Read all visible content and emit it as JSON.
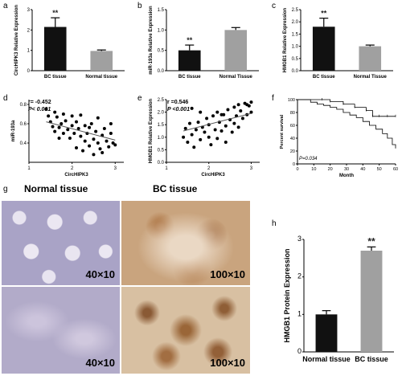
{
  "colors": {
    "black_bar": "#111111",
    "gray_bar": "#a0a0a0",
    "sig": "#222222"
  },
  "panels": {
    "a": {
      "letter": "a"
    },
    "b": {
      "letter": "b"
    },
    "c": {
      "letter": "c"
    },
    "d": {
      "letter": "d",
      "stat1": "r= -0.452",
      "stat2": "P< 0.001"
    },
    "e": {
      "letter": "e",
      "stat1": "r =0.546",
      "stat2": "P <0.001"
    },
    "f": {
      "letter": "f",
      "pval": "P=0.034"
    },
    "g": {
      "letter": "g",
      "title_left": "Normal tissue",
      "title_right": "BC tissue",
      "mag": [
        "40×10",
        "100×10",
        "40×10",
        "100×10"
      ]
    },
    "h": {
      "letter": "h"
    }
  },
  "chart_data": [
    {
      "id": "a",
      "type": "bar",
      "categories": [
        "BC tissue",
        "Normal tissue"
      ],
      "values": [
        2.15,
        0.97
      ],
      "errors": [
        0.45,
        0.05
      ],
      "ylabel": "CircHIPK3 Relative Expression",
      "ylim": [
        0,
        3
      ],
      "yticks": [
        "0",
        "1",
        "2",
        "3"
      ],
      "significance": [
        "**",
        ""
      ]
    },
    {
      "id": "b",
      "type": "bar",
      "categories": [
        "BC tissue",
        "Normal Tissue"
      ],
      "values": [
        0.5,
        1.0
      ],
      "errors": [
        0.13,
        0.06
      ],
      "ylabel": "miR-193a Relative Expression",
      "ylim": [
        0,
        1.5
      ],
      "yticks": [
        "0.0",
        "0.5",
        "1.0",
        "1.5"
      ],
      "significance": [
        "**",
        ""
      ]
    },
    {
      "id": "c",
      "type": "bar",
      "categories": [
        "BC tissue",
        "Normal Tissue"
      ],
      "values": [
        1.8,
        1.0
      ],
      "errors": [
        0.35,
        0.05
      ],
      "ylabel": "HMGB1 Relative Expression",
      "ylim": [
        0,
        2.5
      ],
      "yticks": [
        "0.0",
        "0.5",
        "1.0",
        "1.5",
        "2.0",
        "2.5"
      ],
      "significance": [
        "**",
        ""
      ]
    },
    {
      "id": "d",
      "type": "scatter",
      "xlabel": "CircHIPK3",
      "ylabel": "miR-193a",
      "xlim": [
        1,
        3.2
      ],
      "ylim": [
        0.2,
        0.85
      ],
      "xticks": [
        "1",
        "2",
        "3"
      ],
      "yticks": [
        "0.4",
        "0.6",
        "0.8"
      ],
      "trend": [
        [
          1.4,
          0.62
        ],
        [
          3.0,
          0.43
        ]
      ],
      "points": [
        [
          1.4,
          0.75
        ],
        [
          1.45,
          0.68
        ],
        [
          1.5,
          0.62
        ],
        [
          1.55,
          0.57
        ],
        [
          1.6,
          0.72
        ],
        [
          1.65,
          0.67
        ],
        [
          1.7,
          0.56
        ],
        [
          1.75,
          0.6
        ],
        [
          1.8,
          0.5
        ],
        [
          1.8,
          0.7
        ],
        [
          1.85,
          0.63
        ],
        [
          1.9,
          0.54
        ],
        [
          1.95,
          0.45
        ],
        [
          2.0,
          0.68
        ],
        [
          2.0,
          0.58
        ],
        [
          2.05,
          0.5
        ],
        [
          2.1,
          0.62
        ],
        [
          2.1,
          0.35
        ],
        [
          2.15,
          0.55
        ],
        [
          2.2,
          0.47
        ],
        [
          2.2,
          0.69
        ],
        [
          2.25,
          0.32
        ],
        [
          2.3,
          0.58
        ],
        [
          2.3,
          0.42
        ],
        [
          2.35,
          0.5
        ],
        [
          2.4,
          0.37
        ],
        [
          2.45,
          0.6
        ],
        [
          2.5,
          0.44
        ],
        [
          2.5,
          0.28
        ],
        [
          2.55,
          0.52
        ],
        [
          2.6,
          0.4
        ],
        [
          2.6,
          0.66
        ],
        [
          2.65,
          0.34
        ],
        [
          2.7,
          0.48
        ],
        [
          2.7,
          0.3
        ],
        [
          2.75,
          0.55
        ],
        [
          2.8,
          0.42
        ],
        [
          2.85,
          0.36
        ],
        [
          2.9,
          0.5
        ],
        [
          2.95,
          0.4
        ],
        [
          3.0,
          0.38
        ],
        [
          2.9,
          0.6
        ],
        [
          1.6,
          0.52
        ],
        [
          1.7,
          0.45
        ],
        [
          2.4,
          0.56
        ]
      ]
    },
    {
      "id": "e",
      "type": "scatter",
      "xlabel": "CircHIPK3",
      "ylabel": "HMGB1 Relative Expression",
      "xlim": [
        1,
        3.2
      ],
      "ylim": [
        0,
        2.5
      ],
      "xticks": [
        "1",
        "2",
        "3"
      ],
      "yticks": [
        "0.0",
        "0.5",
        "1.0",
        "1.5",
        "2.0",
        "2.5"
      ],
      "trend": [
        [
          1.4,
          1.25
        ],
        [
          3.0,
          1.95
        ]
      ],
      "points": [
        [
          1.4,
          1.0
        ],
        [
          1.45,
          1.35
        ],
        [
          1.5,
          0.8
        ],
        [
          1.55,
          1.55
        ],
        [
          1.6,
          1.1
        ],
        [
          1.65,
          0.6
        ],
        [
          1.7,
          1.3
        ],
        [
          1.75,
          1.6
        ],
        [
          1.8,
          0.9
        ],
        [
          1.85,
          1.4
        ],
        [
          1.9,
          1.2
        ],
        [
          1.95,
          1.75
        ],
        [
          2.0,
          1.0
        ],
        [
          2.0,
          1.5
        ],
        [
          2.05,
          0.7
        ],
        [
          2.1,
          1.85
        ],
        [
          2.15,
          1.3
        ],
        [
          2.2,
          2.0
        ],
        [
          2.2,
          0.95
        ],
        [
          2.25,
          1.6
        ],
        [
          2.3,
          1.25
        ],
        [
          2.35,
          1.9
        ],
        [
          2.4,
          1.45
        ],
        [
          2.4,
          0.8
        ],
        [
          2.45,
          2.1
        ],
        [
          2.5,
          1.7
        ],
        [
          2.55,
          1.2
        ],
        [
          2.6,
          2.2
        ],
        [
          2.6,
          1.55
        ],
        [
          2.65,
          1.85
        ],
        [
          2.7,
          2.3
        ],
        [
          2.7,
          1.4
        ],
        [
          2.75,
          2.05
        ],
        [
          2.8,
          1.75
        ],
        [
          2.85,
          2.35
        ],
        [
          2.9,
          1.9
        ],
        [
          2.95,
          2.25
        ],
        [
          3.0,
          2.0
        ],
        [
          3.0,
          2.4
        ],
        [
          2.9,
          2.3
        ],
        [
          1.6,
          2.15
        ],
        [
          1.8,
          2.0
        ],
        [
          2.3,
          1.9
        ]
      ]
    },
    {
      "id": "f",
      "type": "line",
      "xlabel": "Month",
      "ylabel": "Percent survival",
      "xlim": [
        0,
        60
      ],
      "ylim": [
        0,
        100
      ],
      "xticks": [
        "0",
        "10",
        "20",
        "30",
        "40",
        "50",
        "60"
      ],
      "yticks": [
        "0",
        "20",
        "40",
        "60",
        "80",
        "100"
      ],
      "series": [
        {
          "style": "solid",
          "points": [
            [
              0,
              100
            ],
            [
              5,
              100
            ],
            [
              8,
              96
            ],
            [
              12,
              93
            ],
            [
              16,
              91
            ],
            [
              20,
              88
            ],
            [
              24,
              85
            ],
            [
              28,
              80
            ],
            [
              32,
              76
            ],
            [
              36,
              72
            ],
            [
              40,
              66
            ],
            [
              44,
              60
            ],
            [
              48,
              54
            ],
            [
              52,
              47
            ],
            [
              55,
              40
            ],
            [
              58,
              30
            ],
            [
              60,
              24
            ]
          ]
        },
        {
          "style": "censored",
          "points": [
            [
              0,
              100
            ],
            [
              15,
              100
            ],
            [
              20,
              97
            ],
            [
              28,
              93
            ],
            [
              35,
              88
            ],
            [
              42,
              83
            ],
            [
              46,
              74
            ],
            [
              50,
              74
            ],
            [
              55,
              74
            ],
            [
              60,
              74
            ]
          ]
        }
      ]
    },
    {
      "id": "h",
      "type": "bar",
      "categories": [
        "Normal tissue",
        "BC tissue"
      ],
      "values": [
        1.0,
        2.7
      ],
      "errors": [
        0.1,
        0.1
      ],
      "ylabel": "HMGB1 Protein Expression",
      "ylim": [
        0,
        3
      ],
      "yticks": [
        "0",
        "1",
        "2",
        "3"
      ],
      "significance": [
        "",
        "**"
      ]
    }
  ]
}
